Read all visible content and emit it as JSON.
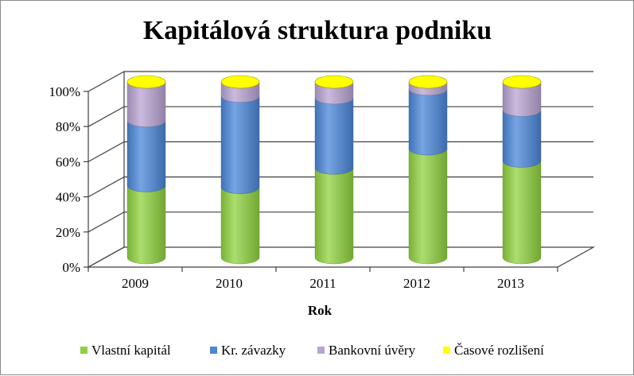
{
  "chart_data": {
    "type": "bar",
    "stacked": true,
    "percent": true,
    "three_d": "cylinder",
    "title": "Kapitálová struktura podniku",
    "xlabel": "Rok",
    "ylabel": "",
    "categories": [
      "2009",
      "2010",
      "2011",
      "2012",
      "2013"
    ],
    "ylim": [
      0,
      100
    ],
    "y_ticks": [
      "0%",
      "20%",
      "40%",
      "60%",
      "80%",
      "100%"
    ],
    "grid": true,
    "legend_position": "bottom",
    "series": [
      {
        "name": "Vlastní kapitál",
        "color": "#8fd13f",
        "values": [
          41,
          40,
          51,
          62,
          55
        ]
      },
      {
        "name": "Kr. závazky",
        "color": "#4a86d8",
        "values": [
          37,
          52,
          40,
          34,
          29
        ]
      },
      {
        "name": "Bankovní úvěry",
        "color": "#b8a3d1",
        "values": [
          22,
          8,
          9,
          4,
          16
        ]
      },
      {
        "name": "Časové rozlišení",
        "color": "#ffff00",
        "values": [
          0,
          0,
          0,
          0,
          0
        ]
      }
    ]
  }
}
